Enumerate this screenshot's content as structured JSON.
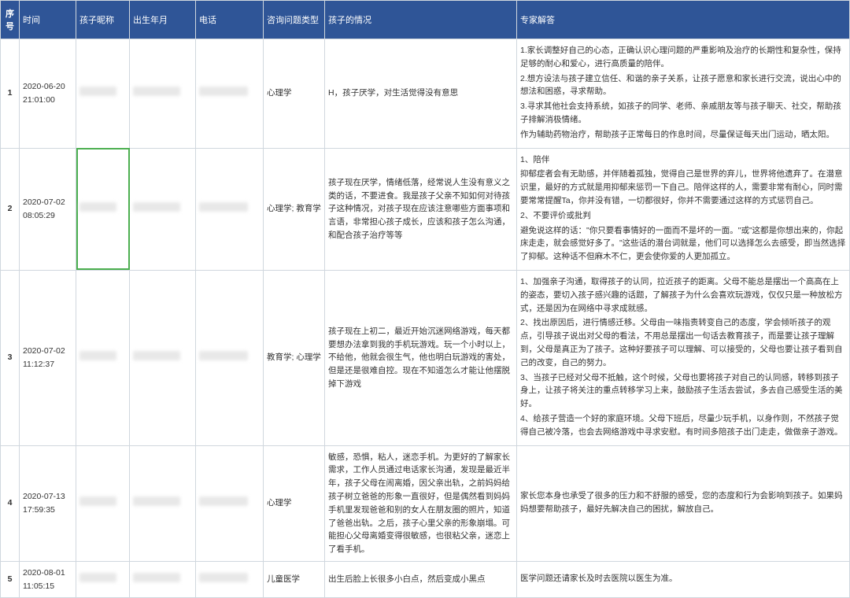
{
  "headers": {
    "seq": "序号",
    "time": "时间",
    "name": "孩子昵称",
    "birth": "出生年月",
    "phone": "电话",
    "type": "咨询问题类型",
    "situation": "孩子的情况",
    "answer": "专家解答"
  },
  "rows": [
    {
      "seq": "1",
      "time": "2020-06-20 21:01:00",
      "type": "心理学",
      "situation": "H，孩子厌学，对生活觉得没有意思",
      "answer_lines": [
        "1.家长调整好自己的心态，正确认识心理问题的严重影响及治疗的长期性和复杂性，保持足够的耐心和爱心，进行高质量的陪伴。",
        "2.想方设法与孩子建立信任、和谐的亲子关系，让孩子愿意和家长进行交流，说出心中的想法和困惑，寻求帮助。",
        "3.寻求其他社会支持系统，如孩子的同学、老师、亲戚朋友等与孩子聊天、社交，帮助孩子排解消极情绪。",
        "作为辅助药物治疗，帮助孩子正常每日的作息时间，尽量保证每天出门运动，晒太阳。"
      ]
    },
    {
      "seq": "2",
      "time": "2020-07-02 08:05:29",
      "type": "心理学; 教育学",
      "situation": "孩子现在厌学，情绪低落，经常说人生没有意义之类的话，不要进食。我是孩子父亲不知如何对待孩子这种情况，对孩子现在应该注意哪些方面事项和言语，非常担心孩子成长，应该和孩子怎么沟通，和配合孩子治疗等等",
      "answer_lines": [
        "1、陪伴",
        "抑郁症者会有无助感，并伴随着孤独，觉得自己是世界的弃儿，世界将他遗弃了。在潜意识里，最好的方式就是用抑郁来惩罚一下自己。陪伴这样的人，需要非常有耐心，同时需要常常提醒Ta，你并没有错，一切都很好，你并不需要通过这样的方式惩罚自己。",
        "2、不要评价或批判",
        "避免说这样的话：\"你只要看事情好的一面而不是坏的一面。\"或\"这都是你想出来的，你起床走走，就会感觉好多了。\"这些话的潜台词就是，他们可以选择怎么去感受，即当然选择了抑郁。这种话不但麻木不仁，更会使你爱的人更加孤立。"
      ],
      "green_cell": "name"
    },
    {
      "seq": "3",
      "time": "2020-07-02 11:12:37",
      "type": "教育学; 心理学",
      "situation": "孩子现在上初二，最近开始沉迷网络游戏，每天都要想办法拿到我的手机玩游戏。玩一个小时以上，不给他，他就会很生气，他也明白玩游戏的害处，但是还是很难自控。现在不知道怎么才能让他摆脱掉下游戏",
      "answer_lines": [
        "1、加强亲子沟通，取得孩子的认同，拉近孩子的距离。父母不能总是摆出一个高高在上的姿态，要切入孩子感兴趣的话题，了解孩子为什么会喜欢玩游戏，仅仅只是一种放松方式，还是因为在网络中寻求成就感。",
        "2、找出原因后，进行情感迁移。父母由一味指责转变自己的态度，学会倾听孩子的观点，引导孩子说出对父母的看法，不用总是摆出一句话去教育孩子，而是要让孩子理解到，父母是真正为了孩子。这种好要孩子可以理解、可以接受的，父母也要让孩子看到自己的改变，自己的努力。",
        "3、当孩子已经对父母不抵触，这个时候，父母也要将孩子对自己的认同感，转移到孩子身上，让孩子将关注的重点转移学习上来，鼓励孩子生活去尝试，多去自己感受生活的美好。",
        "4、给孩子营造一个好的家庭环境。父母下班后，尽量少玩手机，以身作则，不然孩子觉得自己被冷落，也会去网络游戏中寻求安慰。有时间多陪孩子出门走走，做做亲子游戏。"
      ]
    },
    {
      "seq": "4",
      "time": "2020-07-13 17:59:35",
      "type": "心理学",
      "situation": "敏感，恐惧，粘人，迷恋手机。为更好的了解家长需求，工作人员通过电话家长沟通，发现是最近半年，孩子父母在闹离婚，因父亲出轨，之前妈妈给孩子树立爸爸的形象一直很好，但是偶然看到妈妈手机里发现爸爸和别的女人在朋友圈的照片，知道了爸爸出轨。之后，孩子心里父亲的形象崩塌。可能担心父母离婚变得很敏感，也很粘父亲，迷恋上了看手机。",
      "answer_lines": [
        "家长您本身也承受了很多的压力和不舒服的感受，您的态度和行为会影响到孩子。如果妈妈想要帮助孩子，最好先解决自己的困扰，解放自己。"
      ]
    },
    {
      "seq": "5",
      "time": "2020-08-01 11:05:15",
      "type": "儿童医学",
      "situation": "出生后脸上长很多小白点，然后变成小黑点",
      "answer_lines": [
        "医学问题还请家长及时去医院以医生为准。"
      ]
    }
  ]
}
